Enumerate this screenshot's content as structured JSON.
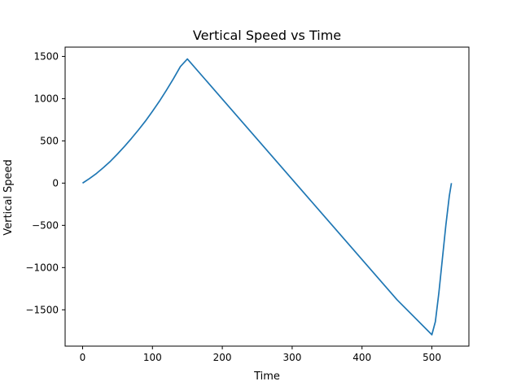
{
  "chart_data": {
    "type": "line",
    "title": "Vertical Speed vs Time",
    "xlabel": "Time",
    "ylabel": "Vertical Speed",
    "xlim": [
      -25,
      553
    ],
    "ylim": [
      -1930,
      1610
    ],
    "xticks": [
      0,
      100,
      200,
      300,
      400,
      500
    ],
    "yticks": [
      1500,
      1000,
      500,
      0,
      -500,
      -1000,
      -1500
    ],
    "grid": false,
    "series": [
      {
        "color": "#1f77b4",
        "x": [
          0,
          10,
          20,
          30,
          40,
          50,
          60,
          70,
          80,
          90,
          100,
          110,
          120,
          130,
          140,
          150,
          200,
          250,
          300,
          350,
          400,
          450,
          500,
          505,
          510,
          515,
          520,
          525,
          528
        ],
        "y": [
          0,
          55,
          115,
          185,
          260,
          345,
          435,
          530,
          630,
          735,
          850,
          970,
          1100,
          1235,
          1380,
          1470,
          995,
          520,
          45,
          -430,
          -905,
          -1380,
          -1795,
          -1640,
          -1300,
          -900,
          -500,
          -150,
          0
        ]
      }
    ]
  }
}
